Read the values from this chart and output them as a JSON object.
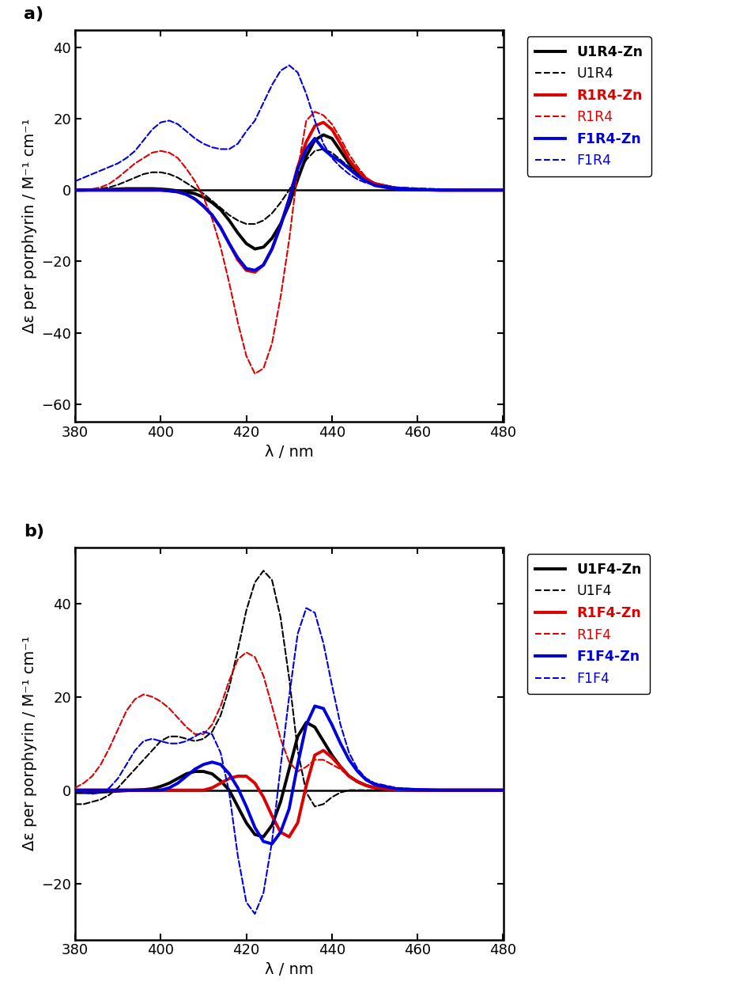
{
  "xlim": [
    380,
    480
  ],
  "xlabel": "λ / nm",
  "ylabel": "Δε per porphyrin / M⁻¹ cm⁻¹",
  "xticks": [
    380,
    400,
    420,
    440,
    460,
    480
  ],
  "panel_a": {
    "label": "a)",
    "ylim": [
      -65,
      45
    ],
    "yticks": [
      -60,
      -40,
      -20,
      0,
      20,
      40
    ],
    "series": [
      {
        "name": "U1R4-Zn",
        "color": "#000000",
        "lw": 2.8,
        "ls": "solid",
        "bold": true,
        "x": [
          380,
          382,
          384,
          386,
          388,
          390,
          392,
          394,
          396,
          398,
          400,
          402,
          404,
          406,
          408,
          410,
          412,
          414,
          416,
          418,
          420,
          422,
          424,
          426,
          428,
          430,
          432,
          434,
          436,
          438,
          440,
          442,
          444,
          446,
          448,
          450,
          455,
          460,
          465,
          470,
          475,
          480
        ],
        "y": [
          0.0,
          0.0,
          0.1,
          0.1,
          0.2,
          0.3,
          0.4,
          0.4,
          0.4,
          0.4,
          0.3,
          0.1,
          -0.2,
          -0.5,
          -1.0,
          -2.0,
          -3.5,
          -5.5,
          -8.5,
          -12.0,
          -15.0,
          -16.5,
          -16.0,
          -13.5,
          -9.5,
          -4.0,
          3.0,
          9.5,
          14.0,
          15.5,
          14.5,
          11.0,
          7.5,
          5.0,
          3.0,
          1.8,
          0.5,
          0.2,
          0.0,
          0.0,
          0.0,
          0.0
        ]
      },
      {
        "name": "U1R4",
        "color": "#000000",
        "lw": 1.5,
        "ls": "dashed",
        "bold": false,
        "x": [
          380,
          382,
          384,
          386,
          388,
          390,
          392,
          394,
          396,
          398,
          400,
          402,
          404,
          406,
          408,
          410,
          412,
          414,
          416,
          418,
          420,
          422,
          424,
          426,
          428,
          430,
          432,
          434,
          436,
          438,
          440,
          442,
          444,
          446,
          448,
          450,
          455,
          460,
          465,
          470,
          475,
          480
        ],
        "y": [
          0.0,
          0.1,
          0.2,
          0.4,
          0.8,
          1.5,
          2.5,
          3.5,
          4.5,
          5.0,
          5.0,
          4.5,
          3.5,
          2.0,
          0.5,
          -1.0,
          -3.0,
          -5.0,
          -7.0,
          -8.5,
          -9.5,
          -9.5,
          -8.5,
          -6.5,
          -3.5,
          0.0,
          4.5,
          8.5,
          11.0,
          11.5,
          10.5,
          8.5,
          6.5,
          4.5,
          2.8,
          1.5,
          0.4,
          0.1,
          0.0,
          0.0,
          0.0,
          0.0
        ]
      },
      {
        "name": "R1R4-Zn",
        "color": "#dd0000",
        "lw": 2.8,
        "ls": "solid",
        "bold": true,
        "x": [
          380,
          382,
          384,
          386,
          388,
          390,
          392,
          394,
          396,
          398,
          400,
          402,
          404,
          406,
          408,
          410,
          412,
          414,
          416,
          418,
          420,
          422,
          424,
          426,
          428,
          430,
          432,
          434,
          436,
          438,
          440,
          442,
          444,
          446,
          448,
          450,
          455,
          460,
          465,
          470,
          475,
          480
        ],
        "y": [
          0.0,
          0.0,
          0.0,
          0.0,
          0.0,
          0.0,
          0.0,
          0.0,
          0.0,
          0.0,
          0.0,
          -0.2,
          -0.5,
          -1.2,
          -2.5,
          -4.5,
          -7.0,
          -10.5,
          -15.0,
          -19.5,
          -22.5,
          -23.0,
          -21.0,
          -16.5,
          -10.0,
          -2.5,
          6.5,
          13.5,
          18.0,
          19.0,
          17.0,
          13.0,
          8.5,
          5.5,
          3.2,
          1.8,
          0.5,
          0.1,
          0.0,
          0.0,
          0.0,
          0.0
        ]
      },
      {
        "name": "R1R4",
        "color": "#dd0000",
        "lw": 1.5,
        "ls": "dashed",
        "bold": false,
        "x": [
          380,
          382,
          384,
          386,
          388,
          390,
          392,
          394,
          396,
          398,
          400,
          402,
          404,
          406,
          408,
          410,
          412,
          414,
          416,
          418,
          420,
          422,
          424,
          426,
          428,
          430,
          432,
          434,
          436,
          438,
          440,
          442,
          444,
          446,
          448,
          450,
          455,
          460,
          465,
          470,
          475,
          480
        ],
        "y": [
          0.0,
          0.1,
          0.3,
          0.8,
          1.8,
          3.5,
          5.5,
          7.5,
          9.0,
          10.5,
          11.0,
          10.5,
          9.0,
          6.0,
          2.5,
          -2.0,
          -8.0,
          -16.0,
          -26.0,
          -37.0,
          -46.5,
          -51.5,
          -50.0,
          -43.0,
          -30.0,
          -14.0,
          5.5,
          19.5,
          22.0,
          21.0,
          18.5,
          14.5,
          10.0,
          6.5,
          3.5,
          1.8,
          0.4,
          0.1,
          0.0,
          0.0,
          0.0,
          0.0
        ]
      },
      {
        "name": "F1R4-Zn",
        "color": "#0000dd",
        "lw": 2.8,
        "ls": "solid",
        "bold": true,
        "x": [
          380,
          382,
          384,
          386,
          388,
          390,
          392,
          394,
          396,
          398,
          400,
          402,
          404,
          406,
          408,
          410,
          412,
          414,
          416,
          418,
          420,
          422,
          424,
          426,
          428,
          430,
          432,
          434,
          436,
          438,
          440,
          442,
          444,
          446,
          448,
          450,
          455,
          460,
          465,
          470,
          475,
          480
        ],
        "y": [
          0.0,
          0.0,
          0.0,
          0.0,
          0.0,
          0.0,
          0.0,
          0.0,
          0.0,
          0.0,
          0.0,
          -0.2,
          -0.5,
          -1.2,
          -2.5,
          -4.5,
          -7.0,
          -10.5,
          -15.0,
          -19.0,
          -22.0,
          -22.5,
          -21.0,
          -16.5,
          -10.0,
          -2.5,
          6.0,
          11.5,
          14.5,
          11.5,
          9.5,
          8.0,
          6.0,
          4.0,
          2.5,
          1.3,
          0.3,
          0.1,
          0.0,
          0.0,
          0.0,
          0.0
        ]
      },
      {
        "name": "F1R4",
        "color": "#0000dd",
        "lw": 1.5,
        "ls": "dashed",
        "bold": false,
        "x": [
          380,
          382,
          384,
          386,
          388,
          390,
          392,
          394,
          396,
          398,
          400,
          402,
          404,
          406,
          408,
          410,
          412,
          414,
          416,
          418,
          420,
          422,
          424,
          426,
          428,
          430,
          432,
          434,
          436,
          438,
          440,
          442,
          444,
          446,
          448,
          450,
          455,
          460,
          465,
          470,
          475,
          480
        ],
        "y": [
          2.5,
          3.5,
          4.5,
          5.5,
          6.5,
          7.5,
          9.0,
          11.0,
          14.0,
          17.0,
          19.0,
          19.5,
          18.5,
          16.5,
          14.5,
          13.0,
          12.0,
          11.5,
          11.5,
          13.0,
          16.5,
          19.5,
          24.5,
          29.5,
          33.5,
          35.0,
          33.0,
          27.0,
          19.5,
          13.0,
          9.0,
          6.5,
          4.5,
          3.0,
          2.0,
          1.5,
          0.8,
          0.5,
          0.3,
          0.1,
          0.0,
          0.0
        ]
      }
    ]
  },
  "panel_b": {
    "label": "b)",
    "ylim": [
      -32,
      52
    ],
    "yticks": [
      -20,
      0,
      20,
      40
    ],
    "series": [
      {
        "name": "U1F4-Zn",
        "color": "#000000",
        "lw": 2.8,
        "ls": "solid",
        "bold": true,
        "x": [
          380,
          382,
          384,
          386,
          388,
          390,
          392,
          394,
          396,
          398,
          400,
          402,
          404,
          406,
          408,
          410,
          412,
          414,
          416,
          418,
          420,
          422,
          424,
          426,
          428,
          430,
          432,
          434,
          436,
          438,
          440,
          442,
          444,
          446,
          448,
          450,
          455,
          460,
          465,
          470,
          475,
          480
        ],
        "y": [
          -0.5,
          -0.5,
          -0.5,
          -0.4,
          -0.3,
          -0.2,
          -0.1,
          0.0,
          0.1,
          0.3,
          0.8,
          1.5,
          2.5,
          3.5,
          4.0,
          4.0,
          3.5,
          2.0,
          0.0,
          -3.5,
          -7.0,
          -9.5,
          -10.0,
          -7.5,
          -2.5,
          4.5,
          11.5,
          14.5,
          13.5,
          10.5,
          7.5,
          5.0,
          3.0,
          1.8,
          1.0,
          0.5,
          0.1,
          0.0,
          0.0,
          0.0,
          0.0,
          0.0
        ]
      },
      {
        "name": "U1F4",
        "color": "#000000",
        "lw": 1.5,
        "ls": "dashed",
        "bold": false,
        "x": [
          380,
          382,
          384,
          386,
          388,
          390,
          392,
          394,
          396,
          398,
          400,
          402,
          404,
          406,
          408,
          410,
          412,
          414,
          416,
          418,
          420,
          422,
          424,
          426,
          428,
          430,
          432,
          434,
          436,
          438,
          440,
          442,
          444,
          446,
          448,
          450,
          455,
          460,
          465,
          470,
          475,
          480
        ],
        "y": [
          -3.0,
          -3.0,
          -2.5,
          -2.0,
          -1.0,
          0.5,
          2.5,
          4.5,
          6.5,
          8.5,
          10.5,
          11.5,
          11.5,
          11.0,
          10.5,
          11.0,
          12.5,
          16.0,
          22.0,
          30.0,
          38.5,
          44.5,
          47.0,
          45.0,
          37.0,
          24.0,
          8.5,
          -0.5,
          -3.5,
          -3.0,
          -1.5,
          -0.5,
          0.0,
          0.0,
          0.0,
          0.0,
          0.0,
          0.0,
          0.0,
          0.0,
          0.0,
          0.0
        ]
      },
      {
        "name": "R1F4-Zn",
        "color": "#dd0000",
        "lw": 2.8,
        "ls": "solid",
        "bold": true,
        "x": [
          380,
          382,
          384,
          386,
          388,
          390,
          392,
          394,
          396,
          398,
          400,
          402,
          404,
          406,
          408,
          410,
          412,
          414,
          416,
          418,
          420,
          422,
          424,
          426,
          428,
          430,
          432,
          434,
          436,
          438,
          440,
          442,
          444,
          446,
          448,
          450,
          455,
          460,
          465,
          470,
          475,
          480
        ],
        "y": [
          0.0,
          0.0,
          0.0,
          0.0,
          0.0,
          0.0,
          0.0,
          0.0,
          0.0,
          0.0,
          0.0,
          0.0,
          0.0,
          0.0,
          0.0,
          0.0,
          0.5,
          1.5,
          2.5,
          3.0,
          3.0,
          1.5,
          -1.5,
          -5.5,
          -9.0,
          -10.0,
          -7.0,
          1.0,
          7.5,
          8.5,
          7.0,
          5.0,
          3.0,
          1.8,
          1.0,
          0.5,
          0.1,
          0.0,
          0.0,
          0.0,
          0.0,
          0.0
        ]
      },
      {
        "name": "R1F4",
        "color": "#dd0000",
        "lw": 1.5,
        "ls": "dashed",
        "bold": false,
        "x": [
          380,
          382,
          384,
          386,
          388,
          390,
          392,
          394,
          396,
          398,
          400,
          402,
          404,
          406,
          408,
          410,
          412,
          414,
          416,
          418,
          420,
          422,
          424,
          426,
          428,
          430,
          432,
          434,
          436,
          438,
          440,
          442,
          444,
          446,
          448,
          450,
          455,
          460,
          465,
          470,
          475,
          480
        ],
        "y": [
          0.5,
          1.5,
          3.0,
          5.5,
          9.0,
          13.0,
          17.0,
          19.5,
          20.5,
          20.0,
          19.0,
          17.5,
          15.5,
          13.5,
          12.0,
          12.0,
          14.0,
          18.0,
          23.5,
          28.0,
          29.5,
          28.5,
          24.5,
          18.0,
          11.0,
          6.0,
          4.0,
          5.0,
          6.5,
          6.5,
          5.5,
          4.5,
          3.0,
          2.0,
          1.0,
          0.5,
          0.1,
          0.0,
          0.0,
          0.0,
          0.0,
          0.0
        ]
      },
      {
        "name": "F1F4-Zn",
        "color": "#0000dd",
        "lw": 2.8,
        "ls": "solid",
        "bold": true,
        "x": [
          380,
          382,
          384,
          386,
          388,
          390,
          392,
          394,
          396,
          398,
          400,
          402,
          404,
          406,
          408,
          410,
          412,
          414,
          416,
          418,
          420,
          422,
          424,
          426,
          428,
          430,
          432,
          434,
          436,
          438,
          440,
          442,
          444,
          446,
          448,
          450,
          455,
          460,
          465,
          470,
          475,
          480
        ],
        "y": [
          0.0,
          0.0,
          0.0,
          0.0,
          0.0,
          0.0,
          0.0,
          0.0,
          0.0,
          0.0,
          0.0,
          0.5,
          1.5,
          3.0,
          4.5,
          5.5,
          6.0,
          5.5,
          3.5,
          0.5,
          -3.5,
          -8.0,
          -11.0,
          -11.5,
          -9.0,
          -4.0,
          5.5,
          14.0,
          18.0,
          17.5,
          14.0,
          10.0,
          6.5,
          4.0,
          2.2,
          1.2,
          0.3,
          0.1,
          0.0,
          0.0,
          0.0,
          0.0
        ]
      },
      {
        "name": "F1F4",
        "color": "#0000dd",
        "lw": 1.5,
        "ls": "dashed",
        "bold": false,
        "x": [
          380,
          382,
          384,
          386,
          388,
          390,
          392,
          394,
          396,
          398,
          400,
          402,
          404,
          406,
          408,
          410,
          412,
          414,
          416,
          418,
          420,
          422,
          424,
          426,
          428,
          430,
          432,
          434,
          436,
          438,
          440,
          442,
          444,
          446,
          448,
          450,
          455,
          460,
          465,
          470,
          475,
          480
        ],
        "y": [
          0.0,
          -0.5,
          -0.8,
          -0.5,
          0.5,
          2.5,
          5.5,
          8.5,
          10.5,
          11.0,
          10.5,
          10.0,
          10.0,
          10.5,
          11.5,
          12.5,
          12.0,
          8.0,
          -0.5,
          -14.0,
          -24.0,
          -26.5,
          -22.0,
          -11.0,
          5.0,
          20.0,
          33.5,
          39.0,
          38.0,
          31.5,
          22.5,
          14.0,
          8.0,
          4.5,
          2.5,
          1.5,
          0.5,
          0.2,
          0.1,
          0.0,
          0.0,
          0.0
        ]
      }
    ]
  },
  "background_color": "#ffffff",
  "font_size": 14,
  "tick_font_size": 13,
  "legend_font_size": 12.5
}
